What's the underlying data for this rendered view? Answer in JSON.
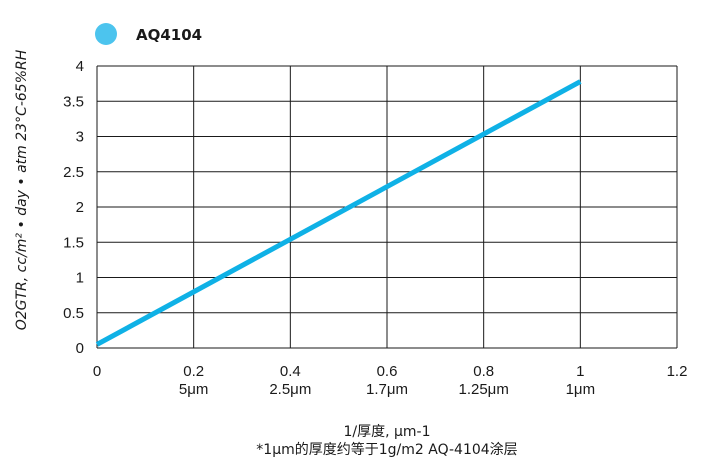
{
  "chart_data": {
    "type": "line",
    "legend": {
      "placement": "top-left"
    },
    "series": [
      {
        "name": "AQ4104",
        "color": "#0fb1e6",
        "legend_color": "#4cc4ee",
        "x": [
          0,
          1
        ],
        "y": [
          0.05,
          3.78
        ]
      }
    ],
    "x_ticks": [
      {
        "value": 0,
        "label": "0",
        "sublabel": ""
      },
      {
        "value": 0.2,
        "label": "0.2",
        "sublabel": "5μm"
      },
      {
        "value": 0.4,
        "label": "0.4",
        "sublabel": "2.5μm"
      },
      {
        "value": 0.6,
        "label": "0.6",
        "sublabel": "1.7μm"
      },
      {
        "value": 0.8,
        "label": "0.8",
        "sublabel": "1.25μm"
      },
      {
        "value": 1,
        "label": "1",
        "sublabel": "1μm"
      },
      {
        "value": 1.2,
        "label": "1.2",
        "sublabel": ""
      }
    ],
    "y_ticks": [
      "0",
      "0.5",
      "1",
      "1.5",
      "2",
      "2.5",
      "3",
      "3.5",
      "4"
    ],
    "xlim": [
      0,
      1.2
    ],
    "ylim": [
      0,
      4
    ],
    "grid": true,
    "xlabel": "1/厚度, μm-1",
    "xnote": "*1μm的厚度约等于1g/m2 AQ-4104涂层",
    "ylabel": "O2GTR, cc/m² • day • atm 23°C-65%RH"
  }
}
